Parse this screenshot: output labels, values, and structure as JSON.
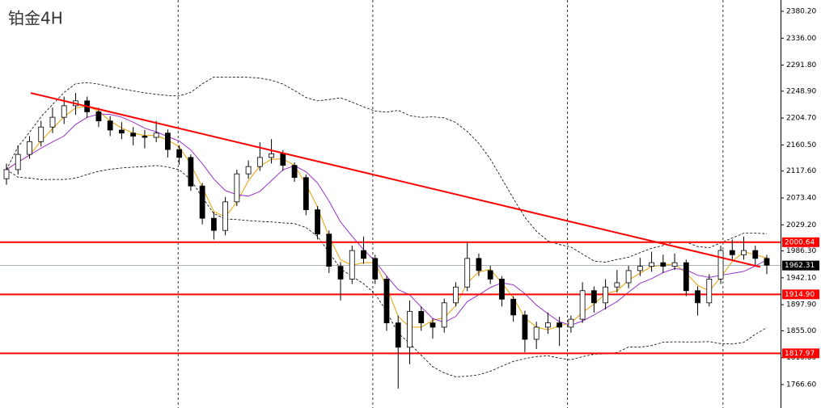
{
  "chart_data": {
    "type": "candlestick",
    "title": "铂金4H",
    "open": [
      2105,
      2120,
      2145,
      2166,
      2190,
      2206,
      2225,
      2233,
      2215,
      2200,
      2185,
      2180,
      2175,
      2173,
      2180,
      2153,
      2140,
      2093,
      2040,
      2020,
      2067,
      2113,
      2125,
      2140,
      2146,
      2127,
      2107,
      2054,
      2014,
      1961,
      1940,
      1987,
      1974,
      1940,
      1868,
      1828,
      1887,
      1868,
      1861,
      1901,
      1927,
      1974,
      1954,
      1940,
      1907,
      1881,
      1841,
      1861,
      1868,
      1861,
      1874,
      1921,
      1901,
      1927,
      1934,
      1954,
      1961,
      1967,
      1961,
      1967,
      1921,
      1901,
      1940,
      1987,
      1980,
      1987,
      1974
    ],
    "high": [
      2130,
      2160,
      2175,
      2200,
      2222,
      2240,
      2246,
      2240,
      2222,
      2208,
      2198,
      2190,
      2185,
      2200,
      2186,
      2160,
      2145,
      2098,
      2050,
      2075,
      2120,
      2135,
      2165,
      2170,
      2152,
      2132,
      2112,
      2060,
      2020,
      1968,
      1995,
      2010,
      1980,
      1945,
      1880,
      1905,
      1895,
      1875,
      1908,
      1935,
      2000,
      1982,
      1962,
      1945,
      1912,
      1888,
      1870,
      1885,
      1878,
      1880,
      1935,
      1928,
      1940,
      1955,
      1962,
      1975,
      1985,
      1980,
      1982,
      1972,
      1928,
      1948,
      1995,
      2005,
      2010,
      1995,
      1980
    ],
    "low": [
      2095,
      2112,
      2138,
      2158,
      2180,
      2195,
      2210,
      2205,
      2190,
      2175,
      2170,
      2160,
      2155,
      2165,
      2140,
      2128,
      2085,
      2030,
      2005,
      2012,
      2060,
      2105,
      2118,
      2130,
      2118,
      2100,
      2045,
      2005,
      1950,
      1905,
      1932,
      1965,
      1932,
      1855,
      1760,
      1800,
      1855,
      1842,
      1852,
      1895,
      1920,
      1945,
      1932,
      1895,
      1870,
      1820,
      1825,
      1850,
      1830,
      1852,
      1868,
      1885,
      1890,
      1918,
      1925,
      1945,
      1952,
      1950,
      1955,
      1912,
      1880,
      1895,
      1932,
      1970,
      1972,
      1962,
      1948
    ],
    "close": [
      2120,
      2145,
      2166,
      2190,
      2206,
      2225,
      2233,
      2215,
      2200,
      2185,
      2180,
      2175,
      2173,
      2180,
      2153,
      2140,
      2093,
      2040,
      2020,
      2067,
      2113,
      2125,
      2140,
      2146,
      2127,
      2107,
      2054,
      2014,
      1961,
      1940,
      1987,
      1974,
      1940,
      1868,
      1828,
      1887,
      1868,
      1861,
      1901,
      1927,
      1974,
      1954,
      1940,
      1907,
      1881,
      1841,
      1861,
      1868,
      1861,
      1874,
      1921,
      1901,
      1927,
      1934,
      1954,
      1961,
      1967,
      1961,
      1967,
      1921,
      1901,
      1940,
      1987,
      1980,
      1987,
      1974,
      1963
    ],
    "ylim": [
      1728.1,
      2398.8
    ],
    "yticks": [
      {
        "value": 2380.2,
        "label": "2380.20"
      },
      {
        "value": 2336,
        "label": "2336.00"
      },
      {
        "value": 2291.8,
        "label": "2291.80"
      },
      {
        "value": 2248.9,
        "label": "2248.90"
      },
      {
        "value": 2204.7,
        "label": "2204.70"
      },
      {
        "value": 2160.5,
        "label": "2160.50"
      },
      {
        "value": 2117.6,
        "label": "2117.60"
      },
      {
        "value": 2073.4,
        "label": "2073.40"
      },
      {
        "value": 2029.2,
        "label": "2029.20"
      },
      {
        "value": 1986.3,
        "label": "1986.30"
      },
      {
        "value": 1942.1,
        "label": "1942.10"
      },
      {
        "value": 1897.9,
        "label": "1897.90"
      },
      {
        "value": 1855,
        "label": "1855.00"
      },
      {
        "value": 1810.8,
        "label": "1810.80"
      },
      {
        "value": 1766.6,
        "label": "1766.60"
      }
    ],
    "levels": [
      {
        "value": 2000.64,
        "label": "2000.64",
        "color": "#ff0000"
      },
      {
        "value": 1914.9,
        "label": "1914.90",
        "color": "#ff0000"
      },
      {
        "value": 1817.97,
        "label": "1817.97",
        "color": "#ff0000"
      },
      {
        "value": 1962.31,
        "label": "1962.31",
        "color": "#8c9aa8"
      }
    ],
    "trendline": {
      "values": [
        2246,
        1960
      ],
      "color": "#ff0000"
    },
    "ma_colors": [
      "#e8a000",
      "#9933cc"
    ]
  }
}
